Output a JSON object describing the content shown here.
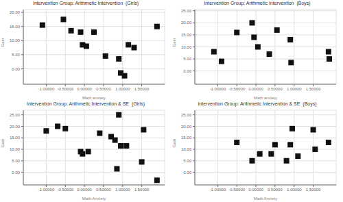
{
  "chart_data": [
    {
      "type": "scatter",
      "title": "Intervention Group: Arithmetic Intervention  (Girls)",
      "x_label": "Math anxiety",
      "y_label": "Gain",
      "xlim": [
        -1.6,
        2.1
      ],
      "ylim": [
        -5.5,
        21.0
      ],
      "xticks": [
        {
          "value": -1.0,
          "label": "-1.00000"
        },
        {
          "value": -0.5,
          "label": "-0.50000"
        },
        {
          "value": 0.0,
          "label": "0.00000"
        },
        {
          "value": 0.5,
          "label": "0.50000"
        },
        {
          "value": 1.0,
          "label": "1.00000"
        },
        {
          "value": 1.5,
          "label": "1.50000"
        }
      ],
      "yticks": [
        {
          "value": 0,
          "label": "0.00"
        },
        {
          "value": 5,
          "label": "5.00"
        },
        {
          "value": 10,
          "label": "10.00"
        },
        {
          "value": 15,
          "label": "15.00"
        },
        {
          "value": 20,
          "label": "20.00"
        }
      ],
      "x": [
        -1.1,
        -0.55,
        -0.35,
        -0.1,
        -0.05,
        0.05,
        0.25,
        0.55,
        0.9,
        0.95,
        1.05,
        1.15,
        1.3,
        1.9
      ],
      "values": [
        15.5,
        17.5,
        13.5,
        13.0,
        8.5,
        8.0,
        13.0,
        4.5,
        3.5,
        -1.5,
        -2.5,
        8.5,
        7.5,
        15.0
      ],
      "color": "#111111",
      "marker": "square",
      "grid": true
    },
    {
      "type": "scatter",
      "title": "Intervention Group: Arithmetic Intervention  (Boys)",
      "x_label": "Math anxiety",
      "y_label": "Gain",
      "xlim": [
        -1.6,
        2.1
      ],
      "ylim": [
        -5.5,
        25.5
      ],
      "xticks": [
        {
          "value": -1.0,
          "label": "-1.00000"
        },
        {
          "value": -0.5,
          "label": "-0.50000"
        },
        {
          "value": 0.0,
          "label": "0.00000"
        },
        {
          "value": 0.5,
          "label": "0.50000"
        },
        {
          "value": 1.0,
          "label": "1.00000"
        },
        {
          "value": 1.5,
          "label": "1.50000"
        }
      ],
      "yticks": [
        {
          "value": 0,
          "label": "0.00"
        },
        {
          "value": 5,
          "label": "5.00"
        },
        {
          "value": 10,
          "label": "10.00"
        },
        {
          "value": 15,
          "label": "15.00"
        },
        {
          "value": 20,
          "label": "20.00"
        },
        {
          "value": 25,
          "label": "25.00"
        }
      ],
      "x": [
        -1.1,
        -0.9,
        -0.5,
        -0.1,
        -0.05,
        0.05,
        0.35,
        0.55,
        0.9,
        0.92,
        1.9,
        1.92
      ],
      "values": [
        8.0,
        4.0,
        16.0,
        20.0,
        14.0,
        10.0,
        7.0,
        17.0,
        13.0,
        3.5,
        8.0,
        5.0
      ],
      "color": "#111111",
      "marker": "square",
      "grid": true
    },
    {
      "type": "scatter",
      "title": "Intervention Group: Arithmetic Intervention & SE  (Girls)",
      "x_label": "Math Anxiety",
      "y_label": "Gain",
      "xlim": [
        -1.6,
        2.1
      ],
      "ylim": [
        -5.5,
        27.0
      ],
      "xticks": [
        {
          "value": -1.0,
          "label": "-1.00000"
        },
        {
          "value": -0.5,
          "label": "-0.50000"
        },
        {
          "value": 0.0,
          "label": "0.00000"
        },
        {
          "value": 0.5,
          "label": "0.50000"
        },
        {
          "value": 1.0,
          "label": "1.00000"
        },
        {
          "value": 1.5,
          "label": "1.50000"
        }
      ],
      "yticks": [
        {
          "value": 0,
          "label": "0.00"
        },
        {
          "value": 5,
          "label": "5.00"
        },
        {
          "value": 10,
          "label": "10.00"
        },
        {
          "value": 15,
          "label": "15.00"
        },
        {
          "value": 20,
          "label": "20.00"
        },
        {
          "value": 25,
          "label": "25.00"
        }
      ],
      "x": [
        -1.0,
        -0.7,
        -0.5,
        -0.1,
        -0.05,
        0.1,
        0.4,
        0.7,
        0.8,
        0.85,
        0.9,
        0.95,
        1.1,
        1.5,
        1.55,
        1.9
      ],
      "values": [
        18.0,
        20.0,
        19.0,
        9.0,
        8.0,
        9.0,
        17.0,
        15.5,
        14.0,
        1.5,
        25.0,
        11.5,
        11.5,
        4.5,
        18.5,
        -3.5
      ],
      "color": "#111111",
      "marker": "square",
      "grid": true
    },
    {
      "type": "scatter",
      "title": "Intervention Group: Arithmetic Intervention & SE  (Boys)",
      "x_label": "Math Anxiety",
      "y_label": "Gain",
      "xlim": [
        -1.6,
        2.1
      ],
      "ylim": [
        -5.5,
        27.0
      ],
      "xticks": [
        {
          "value": -1.0,
          "label": "-1.00000"
        },
        {
          "value": -0.5,
          "label": "-0.50000"
        },
        {
          "value": 0.0,
          "label": "0.00000"
        },
        {
          "value": 0.5,
          "label": "0.50000"
        },
        {
          "value": 1.0,
          "label": "1.00000"
        },
        {
          "value": 1.5,
          "label": "1.50000"
        }
      ],
      "yticks": [
        {
          "value": 0,
          "label": "0.00"
        },
        {
          "value": 5,
          "label": "5.00"
        },
        {
          "value": 10,
          "label": "10.00"
        },
        {
          "value": 15,
          "label": "15.00"
        },
        {
          "value": 20,
          "label": "20.00"
        },
        {
          "value": 25,
          "label": "25.00"
        }
      ],
      "x": [
        -0.5,
        -0.1,
        0.1,
        0.4,
        0.5,
        0.8,
        0.9,
        0.95,
        1.1,
        1.5,
        1.55,
        1.9
      ],
      "values": [
        13.0,
        5.0,
        8.0,
        8.0,
        12.0,
        5.0,
        12.0,
        19.0,
        7.0,
        18.5,
        10.0,
        13.0
      ],
      "color": "#111111",
      "marker": "square",
      "grid": true
    }
  ]
}
